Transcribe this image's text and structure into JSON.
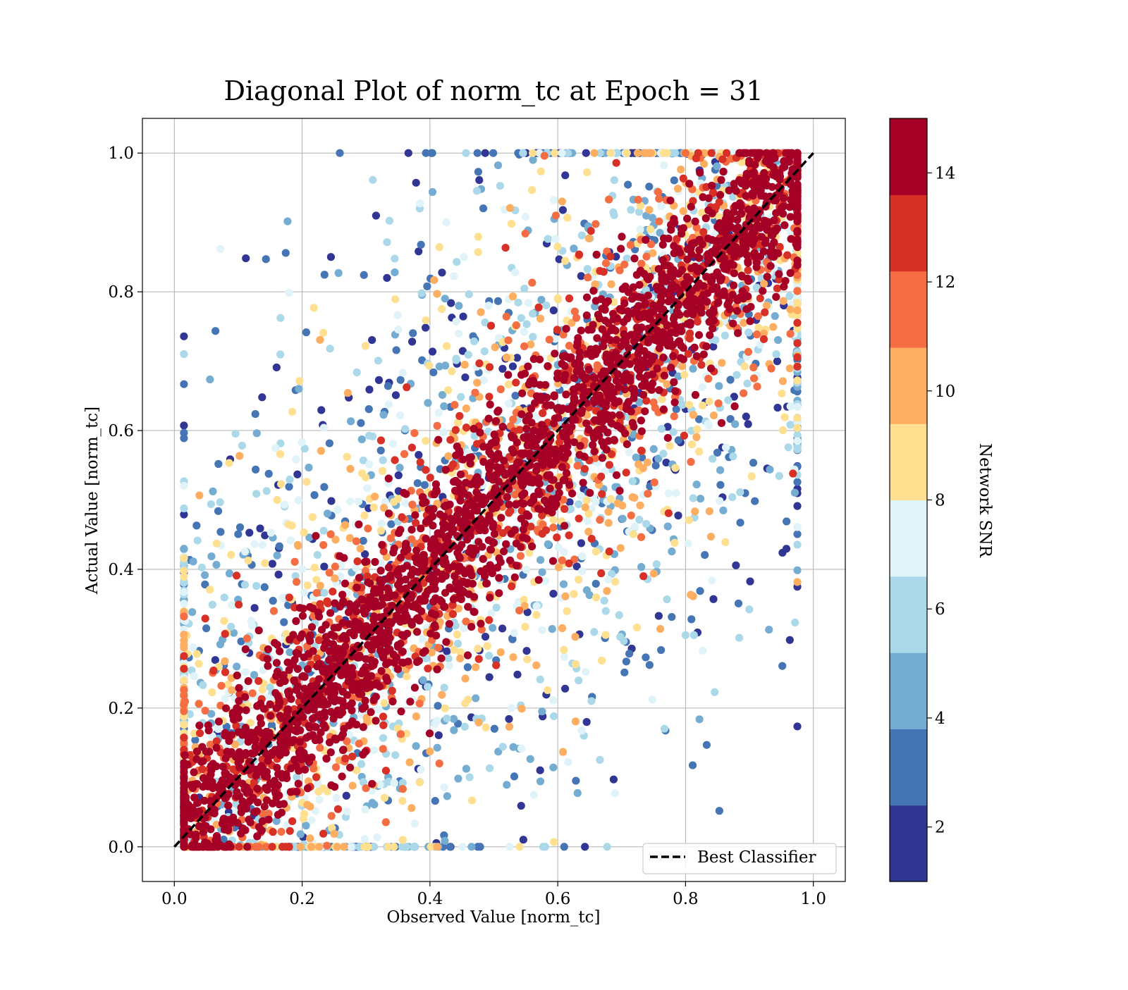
{
  "chart_data": {
    "type": "scatter",
    "title": "Diagonal Plot of norm_tc at Epoch = 31",
    "xlabel": "Observed Value [norm_tc]",
    "ylabel": "Actual Value [norm_tc]",
    "xlim": [
      -0.05,
      1.05
    ],
    "ylim": [
      -0.05,
      1.05
    ],
    "x_ticks": [
      "0.0",
      "0.2",
      "0.4",
      "0.6",
      "0.8",
      "1.0"
    ],
    "y_ticks": [
      "0.0",
      "0.2",
      "0.4",
      "0.6",
      "0.8",
      "1.0"
    ],
    "grid": true,
    "legend": {
      "placement": "lower-right",
      "entries": [
        {
          "label": "Best Classifier",
          "style": "black dashed line"
        }
      ]
    },
    "reference_line": {
      "name": "Best Classifier",
      "x": [
        0.0,
        1.0
      ],
      "y": [
        0.0,
        1.0
      ],
      "color": "#000000",
      "dash": true
    },
    "colorbar": {
      "label": "Network SNR",
      "range": [
        1,
        15
      ],
      "tick_values": [
        2,
        4,
        6,
        8,
        10,
        12,
        14
      ],
      "tick_labels": [
        "2",
        "4",
        "6",
        "8",
        "10",
        "12",
        "14"
      ],
      "colors": [
        "#313695",
        "#4575b4",
        "#74add1",
        "#abd9e9",
        "#e0f3f8",
        "#fee090",
        "#fdae61",
        "#f46d43",
        "#d73027",
        "#a50026"
      ]
    },
    "point_groups": [
      {
        "snr": 14,
        "color": "#a50026",
        "description_bands": [
          [
            0.0,
            0.07
          ]
        ]
      },
      {
        "snr": 12,
        "color": "#d73027"
      },
      {
        "snr": 10,
        "color": "#fdae61"
      },
      {
        "snr": 8,
        "color": "#fee090"
      },
      {
        "snr": 6,
        "color": "#abd9e9"
      },
      {
        "snr": 4,
        "color": "#74add1"
      },
      {
        "snr": 2,
        "color": "#313695"
      }
    ]
  }
}
